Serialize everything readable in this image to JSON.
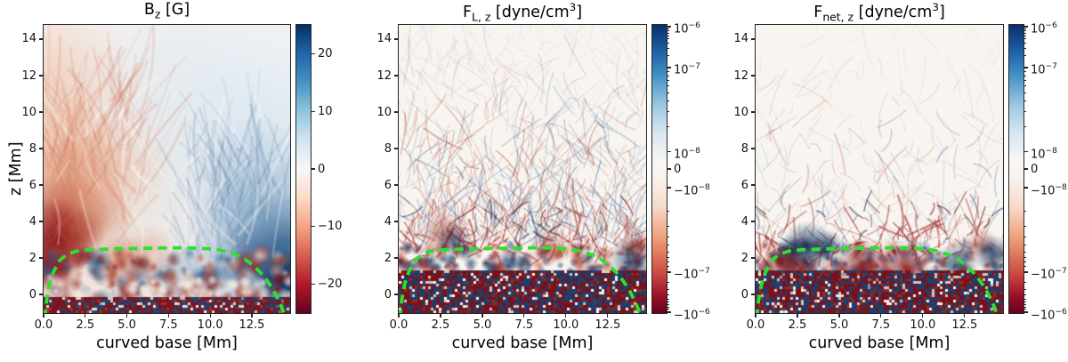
{
  "figure": {
    "background": "#ffffff",
    "spine_color": "#262626",
    "text_color": "#141414"
  },
  "axes": {
    "xlabel": "curved base [Mm]",
    "ylabel": "z [Mm]",
    "xlim": [
      0,
      14.8
    ],
    "ylim": [
      -1.02,
      14.78
    ],
    "xticks": [
      {
        "v": 0,
        "label": "0.0"
      },
      {
        "v": 2.5,
        "label": "2.5"
      },
      {
        "v": 5,
        "label": "5.0"
      },
      {
        "v": 7.5,
        "label": "7.5"
      },
      {
        "v": 10,
        "label": "10.0"
      },
      {
        "v": 12.5,
        "label": "12.5"
      }
    ],
    "yticks": [
      {
        "v": 0,
        "label": "0"
      },
      {
        "v": 2,
        "label": "2"
      },
      {
        "v": 4,
        "label": "4"
      },
      {
        "v": 6,
        "label": "6"
      },
      {
        "v": 8,
        "label": "8"
      },
      {
        "v": 10,
        "label": "10"
      },
      {
        "v": 12,
        "label": "12"
      },
      {
        "v": 14,
        "label": "14"
      }
    ]
  },
  "panels": [
    {
      "id": "bz",
      "paint": "bz",
      "title_parts": [
        {
          "t": "B"
        },
        {
          "t": "z",
          "s": "sub"
        },
        {
          "t": " [G]"
        }
      ],
      "colorbar": {
        "scale": "linear",
        "gradient": "grad-linear",
        "ticks": [
          {
            "frac": 0.1,
            "parts": [
              {
                "t": "20"
              }
            ]
          },
          {
            "frac": 0.3,
            "parts": [
              {
                "t": "10"
              }
            ]
          },
          {
            "frac": 0.5,
            "parts": [
              {
                "t": "0"
              }
            ]
          },
          {
            "frac": 0.7,
            "parts": [
              {
                "t": "−10"
              }
            ]
          },
          {
            "frac": 0.9,
            "parts": [
              {
                "t": "−20"
              }
            ]
          }
        ]
      }
    },
    {
      "id": "flz",
      "paint": "force",
      "title_parts": [
        {
          "t": "F"
        },
        {
          "t": "L, z",
          "s": "sub"
        },
        {
          "t": " [dyne/cm"
        },
        {
          "t": "3",
          "s": "sup"
        },
        {
          "t": "]"
        }
      ],
      "colorbar": {
        "scale": "symlog",
        "gradient": "grad-symlog",
        "ticks": [
          {
            "frac": 0.006,
            "parts": [
              {
                "t": "10"
              },
              {
                "t": "−6",
                "s": "sup"
              }
            ]
          },
          {
            "frac": 0.148,
            "parts": [
              {
                "t": "10"
              },
              {
                "t": "−7",
                "s": "sup"
              }
            ]
          },
          {
            "frac": 0.44,
            "parts": [
              {
                "t": "10"
              },
              {
                "t": "−8",
                "s": "sup"
              }
            ]
          },
          {
            "frac": 0.5,
            "parts": [
              {
                "t": "0"
              }
            ]
          },
          {
            "frac": 0.565,
            "parts": [
              {
                "t": "−10"
              },
              {
                "t": "−8",
                "s": "sup"
              }
            ]
          },
          {
            "frac": 0.858,
            "parts": [
              {
                "t": "−10"
              },
              {
                "t": "−7",
                "s": "sup"
              }
            ]
          },
          {
            "frac": 0.997,
            "parts": [
              {
                "t": "−10"
              },
              {
                "t": "−6",
                "s": "sup"
              }
            ]
          }
        ]
      }
    },
    {
      "id": "fnetz",
      "paint": "force",
      "title_parts": [
        {
          "t": "F"
        },
        {
          "t": "net, z",
          "s": "sub"
        },
        {
          "t": " [dyne/cm"
        },
        {
          "t": "3",
          "s": "sup"
        },
        {
          "t": "]"
        }
      ],
      "colorbar": {
        "scale": "symlog",
        "gradient": "grad-symlog",
        "ticks": [
          {
            "frac": 0.006,
            "parts": [
              {
                "t": "10"
              },
              {
                "t": "−6",
                "s": "sup"
              }
            ]
          },
          {
            "frac": 0.148,
            "parts": [
              {
                "t": "10"
              },
              {
                "t": "−7",
                "s": "sup"
              }
            ]
          },
          {
            "frac": 0.44,
            "parts": [
              {
                "t": "10"
              },
              {
                "t": "−8",
                "s": "sup"
              }
            ]
          },
          {
            "frac": 0.5,
            "parts": [
              {
                "t": "0"
              }
            ]
          },
          {
            "frac": 0.565,
            "parts": [
              {
                "t": "−10"
              },
              {
                "t": "−8",
                "s": "sup"
              }
            ]
          },
          {
            "frac": 0.858,
            "parts": [
              {
                "t": "−10"
              },
              {
                "t": "−7",
                "s": "sup"
              }
            ]
          },
          {
            "frac": 0.997,
            "parts": [
              {
                "t": "−10"
              },
              {
                "t": "−6",
                "s": "sup"
              }
            ]
          }
        ]
      }
    }
  ],
  "chart_data": {
    "type": "heatmap",
    "x": {
      "label": "curved base [Mm]",
      "range": [
        0,
        14.8
      ],
      "ticks": [
        0,
        2.5,
        5,
        7.5,
        10,
        12.5
      ]
    },
    "y": {
      "label": "z [Mm]",
      "range": [
        -1.0,
        14.8
      ],
      "ticks": [
        0,
        2,
        4,
        6,
        8,
        10,
        12,
        14
      ]
    },
    "panels": [
      {
        "title": "B_z [G]",
        "quantity": "vertical magnetic field component B_z",
        "units": "G",
        "colormap": "RdBu (blue = positive, red = negative)",
        "scale": "linear",
        "vmin": -25,
        "vmax": 25,
        "colorbar_ticks": [
          20,
          10,
          0,
          -10,
          -20
        ],
        "features": "smooth large-scale field above the surface: negative (red) polarity concentrated on the left with a dark-red core near x=0-2.5, z=2-5; positive (blue) polarity at the lower right near x=13-14.8, z=0-4; pale mixed field aloft; turbulent salt-and-pepper granulation below z≈0"
      },
      {
        "title": "F_L,z [dyne/cm^3]",
        "quantity": "vertical Lorentz force density",
        "units": "dyne/cm^3",
        "colormap": "RdBu (blue = positive, red = negative)",
        "scale": "symlog",
        "vmin": -1e-06,
        "vmax": 1e-06,
        "linthresh": 1e-08,
        "colorbar_ticks": [
          "1e-06",
          "1e-07",
          "1e-08",
          "0",
          "-1e-08",
          "-1e-07",
          "-1e-06"
        ],
        "features": "near-zero (white) background with fine red/blue filamentary arcs fanning upward through the corona; dense strongly saturated turbulence below z≈2.5"
      },
      {
        "title": "F_net,z [dyne/cm^3]",
        "quantity": "vertical net force density (Lorentz + pressure gradient + gravity)",
        "units": "dyne/cm^3",
        "colormap": "RdBu (blue = positive, red = negative)",
        "scale": "symlog",
        "vmin": -1e-06,
        "vmax": 1e-06,
        "linthresh": 1e-08,
        "colorbar_ticks": [
          "1e-06",
          "1e-07",
          "1e-08",
          "0",
          "-1e-08",
          "-1e-07",
          "-1e-06"
        ],
        "features": "almost force-free (white) corona with only sparse faint streaks above z≈5; strong saturated red/blue turbulence below z≈2.5"
      }
    ],
    "overlay": {
      "name": "green dashed boundary contour (plasma-beta / surface boundary)",
      "style": "dashed",
      "color_hex": "#2ee02e",
      "dash": "10 6.5",
      "width": 3.8,
      "points_Mm": [
        [
          0.07,
          -1.3
        ],
        [
          0.18,
          -0.3
        ],
        [
          0.35,
          0.55
        ],
        [
          0.6,
          1.25
        ],
        [
          0.95,
          1.85
        ],
        [
          1.4,
          2.2
        ],
        [
          2.0,
          2.38
        ],
        [
          2.8,
          2.45
        ],
        [
          4.0,
          2.49
        ],
        [
          5.5,
          2.52
        ],
        [
          7.0,
          2.55
        ],
        [
          8.3,
          2.56
        ],
        [
          9.3,
          2.54
        ],
        [
          10.2,
          2.48
        ],
        [
          10.9,
          2.38
        ],
        [
          11.5,
          2.2
        ],
        [
          12.1,
          1.92
        ],
        [
          12.6,
          1.58
        ],
        [
          13.05,
          1.18
        ],
        [
          13.45,
          0.72
        ],
        [
          13.8,
          0.22
        ],
        [
          14.1,
          -0.32
        ],
        [
          14.35,
          -0.85
        ],
        [
          14.55,
          -1.35
        ]
      ]
    },
    "description": "Three side-by-side vertical slices of a solar MHD simulation sharing identical spatial axes (curved base 0-14.8 Mm vs height z=-1 to 14.8 Mm). Each panel has its own vertical colorbar on the right. A bright-green dashed contour outlines the dome-shaped boundary at z≈2.5 Mm over the interior."
  }
}
